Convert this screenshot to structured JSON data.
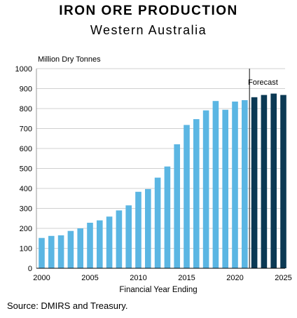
{
  "header": {
    "title": "IRON ORE PRODUCTION",
    "subtitle": "Western Australia"
  },
  "footer": {
    "source": "Source: DMIRS and Treasury."
  },
  "chart_data": {
    "type": "bar",
    "ylabel": "Million Dry Tonnes",
    "xlabel": "Financial Year Ending",
    "ylim": [
      0,
      1000
    ],
    "yticks": [
      0,
      100,
      200,
      300,
      400,
      500,
      600,
      700,
      800,
      900,
      1000
    ],
    "xticks": [
      2000,
      2005,
      2010,
      2015,
      2020,
      2025
    ],
    "grid": true,
    "annotation": "Forecast",
    "colors": {
      "actual": "#5bb6e3",
      "forecast": "#0b3954"
    },
    "series": [
      {
        "name": "",
        "x": [
          2000,
          2001,
          2002,
          2003,
          2004,
          2005,
          2006,
          2007,
          2008,
          2009,
          2010,
          2011,
          2012,
          2013,
          2014,
          2015,
          2016,
          2017,
          2018,
          2019,
          2020,
          2021
        ],
        "values": [
          152,
          162,
          165,
          187,
          200,
          228,
          240,
          259,
          290,
          315,
          383,
          397,
          454,
          510,
          621,
          718,
          747,
          791,
          838,
          794,
          835,
          842
        ]
      },
      {
        "name": "Forecast",
        "x": [
          2022,
          2023,
          2024,
          2025
        ],
        "values": [
          857,
          868,
          875,
          868
        ]
      }
    ]
  }
}
